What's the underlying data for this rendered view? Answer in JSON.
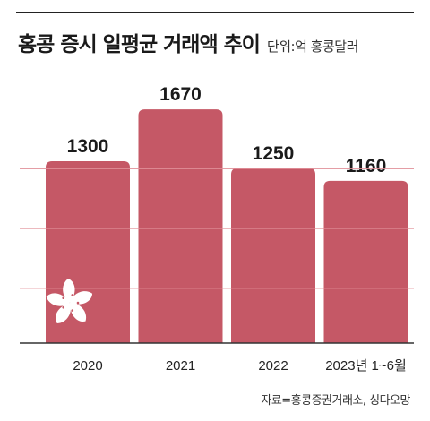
{
  "header": {
    "title": "홍콩 증시 일평균 거래액 추이",
    "unit": "단위:억 홍콩달러"
  },
  "source": "자료=홍콩증권거래소, 싱다오망",
  "colors": {
    "bar": "#c55866",
    "gridline": "#e08f98",
    "axis": "#333333",
    "emblem": "#ffffff"
  },
  "emblem_icon": "bauhinia-flower-icon",
  "chart_data": {
    "type": "bar",
    "title": "홍콩 증시 일평균 거래액 추이",
    "unit": "단위:억 홍콩달러",
    "categories": [
      "2020",
      "2021",
      "2022",
      "2023년 1~6월"
    ],
    "values": [
      1300,
      1670,
      1250,
      1160
    ],
    "data_labels": [
      "1300",
      "1670",
      "1250",
      "1160"
    ],
    "ylim": [
      0,
      1780
    ],
    "grid": true,
    "legend": "none"
  }
}
